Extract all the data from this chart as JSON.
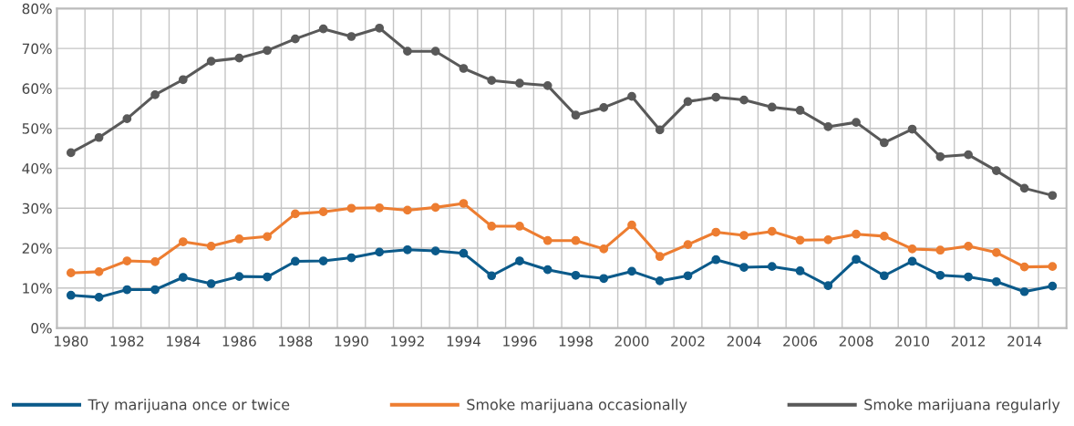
{
  "chart_data": {
    "type": "line",
    "categories": [
      "1980",
      null,
      "1982",
      null,
      "1984",
      null,
      "1986",
      null,
      "1988",
      null,
      "1990",
      null,
      "1992",
      null,
      "1994",
      null,
      "1996",
      null,
      "1998",
      null,
      "2000",
      null,
      "2002",
      null,
      "2004",
      null,
      "2006",
      null,
      "2008",
      null,
      "2010",
      null,
      "2012",
      null,
      "2014",
      null
    ],
    "series": [
      {
        "name": "Try marijuana once or twice",
        "color": "#0b5a8a",
        "values": [
          8.2,
          7.7,
          9.6,
          9.6,
          12.7,
          11.1,
          12.9,
          12.8,
          16.7,
          16.8,
          17.6,
          19.0,
          19.6,
          19.3,
          18.7,
          13.1,
          16.8,
          14.6,
          13.2,
          12.4,
          14.2,
          11.8,
          13.1,
          17.1,
          15.2,
          15.4,
          14.3,
          10.6,
          17.2,
          13.1,
          16.7,
          13.2,
          12.8,
          11.6,
          9.1,
          10.5
        ]
      },
      {
        "name": "Smoke marijuana occasionally",
        "color": "#ed7d31",
        "values": [
          13.8,
          14.1,
          16.8,
          16.6,
          21.6,
          20.5,
          22.3,
          22.9,
          28.6,
          29.1,
          30.0,
          30.1,
          29.5,
          30.2,
          31.2,
          25.5,
          25.5,
          21.9,
          21.9,
          19.8,
          25.8,
          17.9,
          20.9,
          24.0,
          23.2,
          24.2,
          22.0,
          22.1,
          23.5,
          23.0,
          19.8,
          19.5,
          20.5,
          18.9,
          15.3,
          15.4
        ]
      },
      {
        "name": "Smoke marijuana regularly",
        "color": "#595959",
        "values": [
          43.9,
          47.7,
          52.4,
          58.4,
          62.2,
          66.8,
          67.6,
          69.5,
          72.4,
          74.9,
          73.0,
          75.1,
          69.3,
          69.3,
          65.0,
          62.0,
          61.3,
          60.7,
          53.3,
          55.2,
          58.0,
          49.6,
          56.7,
          57.8,
          57.1,
          55.3,
          54.5,
          50.4,
          51.5,
          46.4,
          49.8,
          42.9,
          43.4,
          39.4,
          35.0,
          33.2
        ]
      }
    ],
    "ylim": [
      0,
      80
    ],
    "yticks": [
      {
        "value": 0,
        "label": "0%"
      },
      {
        "value": 10,
        "label": "10%"
      },
      {
        "value": 20,
        "label": "20%"
      },
      {
        "value": 30,
        "label": "30%"
      },
      {
        "value": 40,
        "label": "40%"
      },
      {
        "value": 50,
        "label": "50%"
      },
      {
        "value": 60,
        "label": "60%"
      },
      {
        "value": 70,
        "label": "70%"
      },
      {
        "value": 80,
        "label": "80%"
      }
    ],
    "grid": true,
    "legend": "bottom",
    "marker": "circle",
    "line_style": "solid"
  }
}
